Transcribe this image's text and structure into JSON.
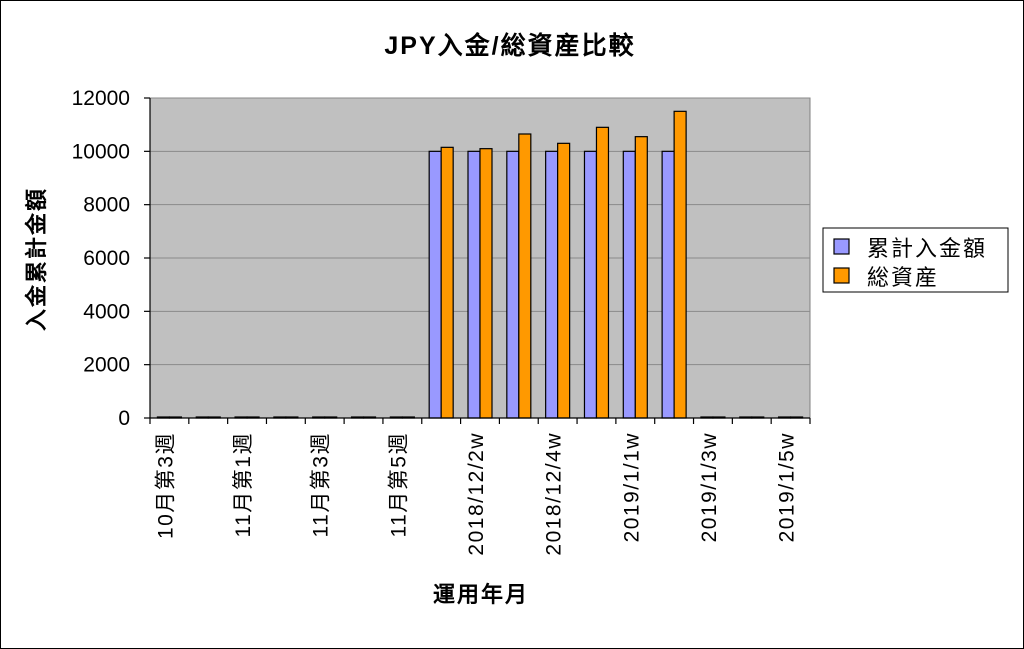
{
  "chart_data": {
    "type": "bar",
    "title": "JPY入金/総資産比較",
    "xlabel": "運用年月",
    "ylabel": "入金累計金額",
    "ylim": [
      0,
      12000
    ],
    "yticks": [
      0,
      2000,
      4000,
      6000,
      8000,
      10000,
      12000
    ],
    "categories": [
      "10月第3週",
      "",
      "11月第1週",
      "",
      "11月第3週",
      "",
      "11月第5週",
      "",
      "2018/12/2w",
      "",
      "2018/12/4w",
      "",
      "2019/1/1w",
      "",
      "2019/1/3w",
      "",
      "2019/1/5w"
    ],
    "series": [
      {
        "name": "累計入金額",
        "color": "#9999FF",
        "values": [
          0,
          0,
          0,
          0,
          0,
          0,
          0,
          10000,
          10000,
          10000,
          10000,
          10000,
          10000,
          10000,
          0,
          0,
          0
        ]
      },
      {
        "name": "総資産",
        "color": "#FF9900",
        "values": [
          0,
          0,
          0,
          0,
          0,
          0,
          0,
          10150,
          10100,
          10650,
          10300,
          10900,
          10550,
          11500,
          0,
          0,
          0
        ]
      }
    ],
    "grid": true,
    "legend": "right",
    "plot_background": "#C0C0C0"
  }
}
